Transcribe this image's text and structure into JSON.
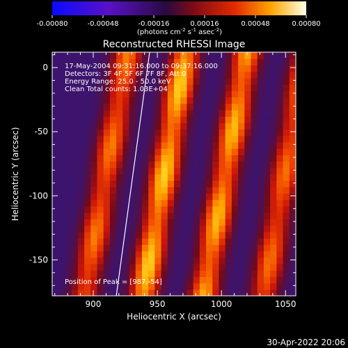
{
  "chart_data": {
    "type": "heatmap",
    "title": "Reconstructed RHESSI Image",
    "xlabel": "Heliocentric X (arcsec)",
    "ylabel": "Heliocentric Y (arcsec)",
    "xlim": [
      868,
      1058
    ],
    "ylim": [
      -178,
      12
    ],
    "xticks": [
      900,
      950,
      1000,
      1050
    ],
    "yticks": [
      -150,
      -100,
      -50,
      0
    ],
    "annotations": [
      "17-May-2004 09:31:16.000 to 09:37:16.000",
      "Detectors: 3F 4F 5F 6F 7F 8F, Att 0",
      "Energy Range: 25.0 - 50.0 keV",
      "Clean    Total counts: 1.03E+04"
    ],
    "peak_label": "Position of Peak = [987,-54]",
    "peak": [
      987,
      -54
    ],
    "limb_line": {
      "x": [
        918,
        944
      ],
      "y": [
        -178,
        12
      ]
    },
    "colorbar": {
      "range": [
        -0.0008,
        0.0008
      ],
      "ticks": [
        "-0.00080",
        "-0.00048",
        "-0.00016",
        "0.00016",
        "0.00048",
        "0.00080"
      ],
      "unit_parts": [
        "(photons cm",
        "-2",
        " s",
        "-1",
        " asec",
        "-2",
        ")"
      ]
    },
    "stripes": [
      {
        "x_at_bottom": 893,
        "x_at_top": 927,
        "peak": 0.00052
      },
      {
        "x_at_bottom": 939,
        "x_at_top": 972,
        "peak": 0.0007
      },
      {
        "x_at_bottom": 986,
        "x_at_top": 1020,
        "peak": 0.00065
      },
      {
        "x_at_bottom": 1033,
        "x_at_top": 1066,
        "peak": 0.0005
      }
    ],
    "colors": {
      "background": "#000000",
      "text": "#ffffff"
    }
  },
  "footer": {
    "timestamp": "30-Apr-2022 20:06"
  }
}
